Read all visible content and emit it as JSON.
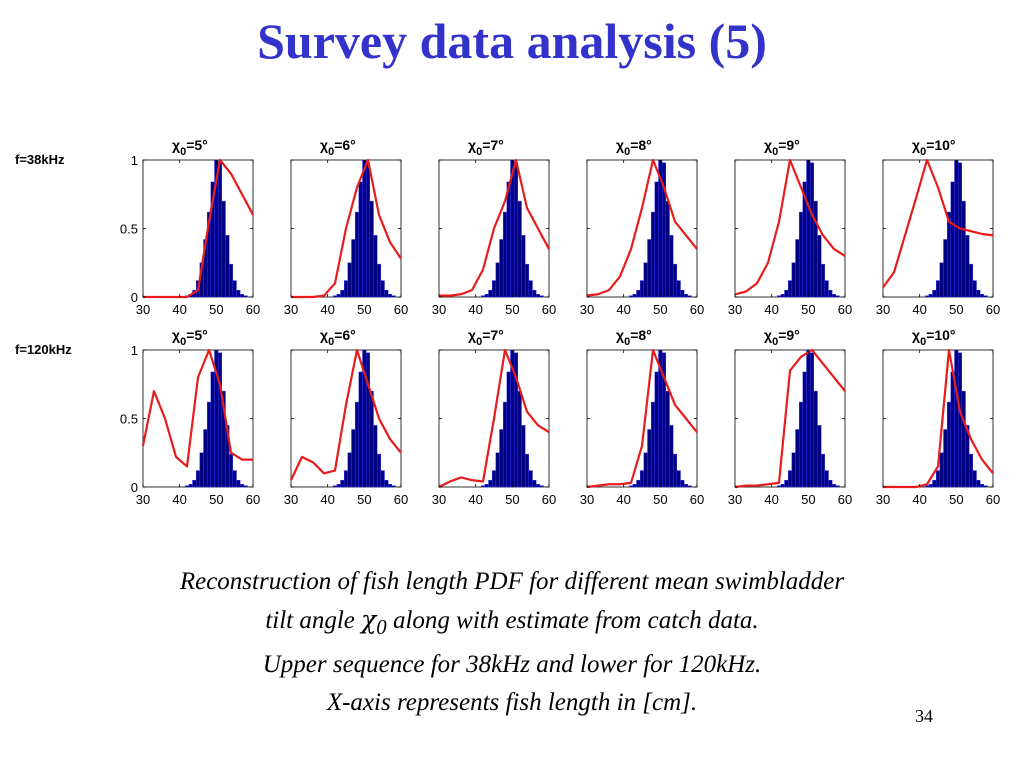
{
  "title": "Survey data analysis (5)",
  "row_labels": [
    "f=38kHz",
    "f=120kHz"
  ],
  "caption": {
    "line1": "Reconstruction of fish length PDF for different mean swimbladder",
    "line2_pre": "tilt angle ",
    "line2_chi": "χ",
    "line2_sub": "0",
    "line2_post": " along with estimate from catch data.",
    "line3": "Upper sequence for 38kHz  and lower for 120kHz.",
    "line4": "X-axis represents fish length in [cm]."
  },
  "page_number": "34",
  "colors": {
    "title": "#3333cc",
    "bars": "#000080",
    "line": "#e81c1c"
  },
  "chart_data": {
    "type": "bar",
    "description_type": "histogram with line overlay (small multiples)",
    "xlim": [
      30,
      60
    ],
    "ylim": [
      0,
      1
    ],
    "xticks": [
      30,
      40,
      50,
      60
    ],
    "yticks": [
      0,
      0.5,
      1
    ],
    "ytick_labels": [
      "0",
      "0.5",
      "1"
    ],
    "bin_centers": [
      42,
      43,
      44,
      45,
      46,
      47,
      48,
      49,
      50,
      51,
      52,
      53,
      54,
      55,
      56,
      57,
      58
    ],
    "histogram_values": [
      0.01,
      0.02,
      0.05,
      0.12,
      0.25,
      0.42,
      0.62,
      0.84,
      1.0,
      0.98,
      0.7,
      0.45,
      0.24,
      0.12,
      0.05,
      0.02,
      0.01
    ],
    "curve_x": [
      30,
      33,
      36,
      39,
      42,
      45,
      48,
      51,
      54,
      57,
      60
    ],
    "panels": [
      {
        "row": 0,
        "label_pre": "χ",
        "label_sub": "0",
        "label_post": "=5°",
        "curve_y": [
          0,
          0,
          0,
          0,
          0,
          0.05,
          0.55,
          1.0,
          0.9,
          0.75,
          0.6
        ]
      },
      {
        "row": 0,
        "label_pre": "χ",
        "label_sub": "0",
        "label_post": "=6°",
        "curve_y": [
          0,
          0,
          0,
          0.01,
          0.1,
          0.5,
          0.8,
          1.0,
          0.6,
          0.4,
          0.28
        ]
      },
      {
        "row": 0,
        "label_pre": "χ",
        "label_sub": "0",
        "label_post": "=7°",
        "curve_y": [
          0.01,
          0.01,
          0.02,
          0.05,
          0.2,
          0.5,
          0.7,
          1.0,
          0.65,
          0.5,
          0.35
        ]
      },
      {
        "row": 0,
        "label_pre": "χ",
        "label_sub": "0",
        "label_post": "=8°",
        "curve_y": [
          0.01,
          0.02,
          0.05,
          0.15,
          0.35,
          0.65,
          1.0,
          0.8,
          0.55,
          0.45,
          0.35
        ]
      },
      {
        "row": 0,
        "label_pre": "χ",
        "label_sub": "0",
        "label_post": "=9°",
        "curve_y": [
          0.02,
          0.04,
          0.1,
          0.25,
          0.55,
          1.0,
          0.8,
          0.6,
          0.45,
          0.35,
          0.3
        ]
      },
      {
        "row": 0,
        "label_pre": "χ",
        "label_sub": "0",
        "label_post": "=10°",
        "curve_y": [
          0.07,
          0.18,
          0.45,
          0.72,
          1.0,
          0.8,
          0.55,
          0.5,
          0.48,
          0.46,
          0.45
        ]
      },
      {
        "row": 1,
        "label_pre": "χ",
        "label_sub": "0",
        "label_post": "=5°",
        "curve_y": [
          0.3,
          0.7,
          0.5,
          0.22,
          0.15,
          0.8,
          1.0,
          0.75,
          0.25,
          0.2,
          0.2
        ]
      },
      {
        "row": 1,
        "label_pre": "χ",
        "label_sub": "0",
        "label_post": "=6°",
        "curve_y": [
          0.05,
          0.22,
          0.18,
          0.1,
          0.12,
          0.6,
          1.0,
          0.75,
          0.5,
          0.35,
          0.25
        ]
      },
      {
        "row": 1,
        "label_pre": "χ",
        "label_sub": "0",
        "label_post": "=7°",
        "curve_y": [
          0.0,
          0.04,
          0.07,
          0.05,
          0.04,
          0.5,
          1.0,
          0.8,
          0.55,
          0.45,
          0.4
        ]
      },
      {
        "row": 1,
        "label_pre": "χ",
        "label_sub": "0",
        "label_post": "=8°",
        "curve_y": [
          0.0,
          0.01,
          0.02,
          0.02,
          0.03,
          0.3,
          1.0,
          0.8,
          0.6,
          0.5,
          0.4
        ]
      },
      {
        "row": 1,
        "label_pre": "χ",
        "label_sub": "0",
        "label_post": "=9°",
        "curve_y": [
          0.0,
          0.01,
          0.01,
          0.02,
          0.03,
          0.85,
          0.95,
          1.0,
          0.9,
          0.8,
          0.7
        ]
      },
      {
        "row": 1,
        "label_pre": "χ",
        "label_sub": "0",
        "label_post": "=10°",
        "curve_y": [
          0.0,
          0.0,
          0.0,
          0.0,
          0.02,
          0.15,
          1.0,
          0.55,
          0.35,
          0.2,
          0.1
        ]
      }
    ]
  }
}
